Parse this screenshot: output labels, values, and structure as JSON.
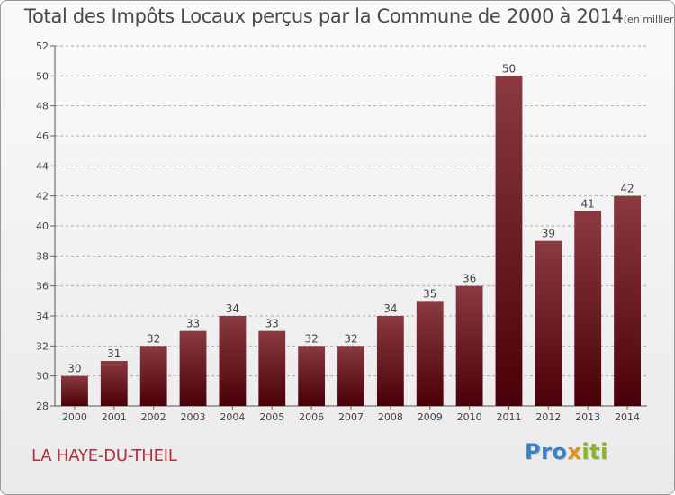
{
  "chart_data": {
    "type": "bar",
    "title": "Total des Impôts Locaux perçus par la Commune de 2000 à 2014",
    "unit_note": "(en milliers d'€)",
    "categories": [
      "2000",
      "2001",
      "2002",
      "2003",
      "2004",
      "2005",
      "2006",
      "2007",
      "2008",
      "2009",
      "2010",
      "2011",
      "2012",
      "2013",
      "2014"
    ],
    "values": [
      30,
      31,
      32,
      33,
      34,
      33,
      32,
      32,
      34,
      35,
      36,
      50,
      39,
      41,
      42
    ],
    "ylim": [
      28,
      52
    ],
    "yticks": [
      28,
      30,
      32,
      34,
      36,
      38,
      40,
      42,
      44,
      46,
      48,
      50,
      52
    ],
    "xlabel": "",
    "ylabel": "",
    "bar_color_top": "#8a3a40",
    "bar_color_bottom": "#4a0008"
  },
  "commune_name": "LA HAYE-DU-THEIL",
  "logo": {
    "text_1": "Pro",
    "text_2": "x",
    "text_3": "iti"
  },
  "colors": {
    "commune": "#b22f3b",
    "title": "#4a4a4a",
    "grid": "#aaaaaa"
  }
}
